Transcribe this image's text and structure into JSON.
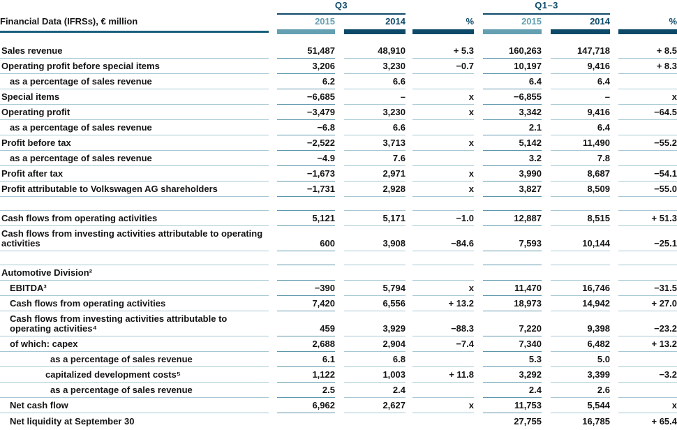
{
  "table": {
    "title": "Financial Data (IFRSs), € million",
    "groups": [
      {
        "label": "Q3"
      },
      {
        "label": "Q1–3"
      }
    ],
    "columns": [
      "2015",
      "2014",
      "%",
      "2015",
      "2014",
      "%"
    ],
    "rows": [
      {
        "label": "Sales revenue",
        "indent": 0,
        "cells": [
          "51,487",
          "48,910",
          "+ 5.3",
          "160,263",
          "147,718",
          "+ 8.5"
        ]
      },
      {
        "label": "Operating profit before special items",
        "indent": 0,
        "cells": [
          "3,206",
          "3,230",
          "−0.7",
          "10,197",
          "9,416",
          "+ 8.3"
        ]
      },
      {
        "label": "as a percentage of sales revenue",
        "indent": 1,
        "cells": [
          "6.2",
          "6.6",
          "",
          "6.4",
          "6.4",
          ""
        ]
      },
      {
        "label": "Special items",
        "indent": 0,
        "cells": [
          "−6,685",
          "–",
          "x",
          "−6,855",
          "–",
          "x"
        ]
      },
      {
        "label": "Operating profit",
        "indent": 0,
        "cells": [
          "−3,479",
          "3,230",
          "x",
          "3,342",
          "9,416",
          "−64.5"
        ]
      },
      {
        "label": "as a percentage of sales revenue",
        "indent": 1,
        "cells": [
          "−6.8",
          "6.6",
          "",
          "2.1",
          "6.4",
          ""
        ]
      },
      {
        "label": "Profit before tax",
        "indent": 0,
        "cells": [
          "−2,522",
          "3,713",
          "x",
          "5,142",
          "11,490",
          "−55.2"
        ]
      },
      {
        "label": "as a percentage of sales revenue",
        "indent": 1,
        "cells": [
          "−4.9",
          "7.6",
          "",
          "3.2",
          "7.8",
          ""
        ]
      },
      {
        "label": "Profit after tax",
        "indent": 0,
        "cells": [
          "−1,673",
          "2,971",
          "x",
          "3,990",
          "8,687",
          "−54.1"
        ]
      },
      {
        "label": "Profit attributable to Volkswagen AG shareholders",
        "indent": 0,
        "cells": [
          "−1,731",
          "2,928",
          "x",
          "3,827",
          "8,509",
          "−55.0"
        ]
      },
      {
        "type": "spacer",
        "label": "",
        "cells": [
          "",
          "",
          "",
          "",
          "",
          ""
        ]
      },
      {
        "label": "Cash flows from operating activities",
        "indent": 0,
        "cells": [
          "5,121",
          "5,171",
          "−1.0",
          "12,887",
          "8,515",
          "+ 51.3"
        ]
      },
      {
        "label": "Cash flows from investing activities attributable to operating activities",
        "indent": 0,
        "tall": true,
        "cells": [
          "600",
          "3,908",
          "−84.6",
          "7,593",
          "10,144",
          "−25.1"
        ]
      },
      {
        "type": "spacer",
        "label": "",
        "cells": [
          "",
          "",
          "",
          "",
          "",
          ""
        ]
      },
      {
        "label": "Automotive Division²",
        "indent": 0,
        "cells": [
          "",
          "",
          "",
          "",
          "",
          ""
        ]
      },
      {
        "label": "EBITDA³",
        "indent": 1,
        "cells": [
          "−390",
          "5,794",
          "x",
          "11,470",
          "16,746",
          "−31.5"
        ]
      },
      {
        "label": "Cash flows from operating activities",
        "indent": 1,
        "cells": [
          "7,420",
          "6,556",
          "+ 13.2",
          "18,973",
          "14,942",
          "+ 27.0"
        ]
      },
      {
        "label": "Cash flows from investing activities attributable to operating activities⁴",
        "indent": 1,
        "tall": true,
        "cells": [
          "459",
          "3,929",
          "−88.3",
          "7,220",
          "9,398",
          "−23.2"
        ]
      },
      {
        "label": "of which: capex",
        "indent": 1,
        "cells": [
          "2,688",
          "2,904",
          "−7.4",
          "7,340",
          "6,482",
          "+ 13.2"
        ]
      },
      {
        "label": "as a percentage of sales revenue",
        "indent": 3,
        "cells": [
          "6.1",
          "6.8",
          "",
          "5.3",
          "5.0",
          ""
        ]
      },
      {
        "label": "capitalized development costs⁵",
        "indent": 2,
        "cells": [
          "1,122",
          "1,003",
          "+ 11.8",
          "3,292",
          "3,399",
          "−3.2"
        ]
      },
      {
        "label": "as a percentage of sales revenue",
        "indent": 3,
        "cells": [
          "2.5",
          "2.4",
          "",
          "2.4",
          "2.6",
          ""
        ]
      },
      {
        "label": "Net cash flow",
        "indent": 1,
        "cells": [
          "6,962",
          "2,627",
          "x",
          "11,753",
          "5,544",
          "x"
        ]
      },
      {
        "label": "Net liquidity at September 30",
        "indent": 1,
        "last": true,
        "cells": [
          "",
          "",
          "",
          "27,755",
          "16,785",
          "+ 65.4"
        ]
      }
    ]
  },
  "colors": {
    "accent_dark": "#0d4a69",
    "accent_light_2015": "#649fb2",
    "row_rule_light": "#a6c8d4",
    "row_rule_current_year": "#5b96ab",
    "label_header_rule": "#15607b",
    "text": "#141414"
  }
}
